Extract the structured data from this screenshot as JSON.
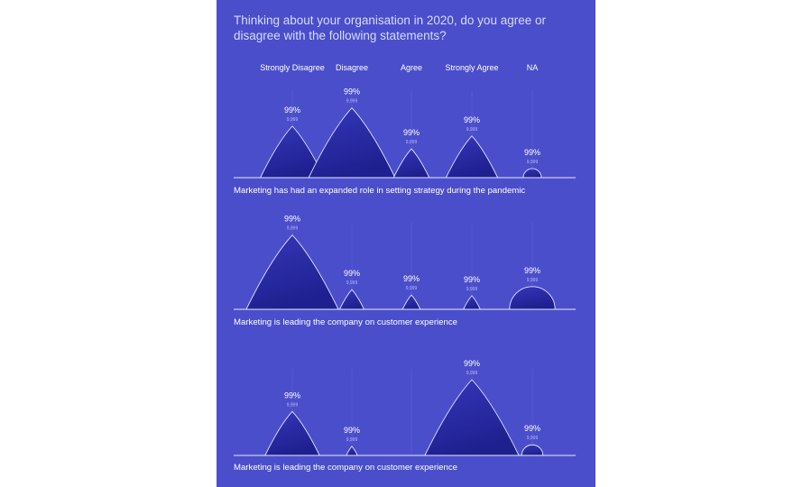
{
  "title": "Thinking about your organisation in 2020, do you agree or disagree with the following statements?",
  "chart_data": {
    "type": "area",
    "title": "Thinking about your organisation in 2020, do you agree or disagree with the following statements?",
    "categories": [
      "Strongly Disagree",
      "Disagree",
      "Agree",
      "Strongly Agree",
      "NA"
    ],
    "rows": [
      {
        "label": "Marketing has had an expanded role in setting strategy during the pandemic",
        "percent_labels": [
          "99%",
          "99%",
          "99%",
          "99%",
          "99%"
        ],
        "count_labels": [
          "9,999",
          "9,999",
          "9,999",
          "9,999",
          "9,999"
        ],
        "relative_values": [
          0.68,
          0.92,
          0.38,
          0.55,
          0.12
        ],
        "shapes": [
          "peak",
          "peak",
          "peak",
          "peak",
          "dome"
        ]
      },
      {
        "label": "Marketing is leading the company on customer experience",
        "percent_labels": [
          "99%",
          "99%",
          "99%",
          "99%",
          "99%"
        ],
        "count_labels": [
          "9,999",
          "9,999",
          "9,999",
          "9,999",
          "9,999"
        ],
        "relative_values": [
          0.98,
          0.26,
          0.19,
          0.18,
          0.3
        ],
        "shapes": [
          "peak",
          "peak",
          "peak",
          "peak",
          "dome"
        ]
      },
      {
        "label": "Marketing is leading the company on customer experience",
        "percent_labels": [
          "99%",
          "99%",
          null,
          "99%",
          "99%"
        ],
        "count_labels": [
          "9,999",
          "9,999",
          null,
          "9,999",
          "9,999"
        ],
        "relative_values": [
          0.58,
          0.12,
          0,
          1.0,
          0.14
        ],
        "shapes": [
          "peak",
          "peak",
          "none",
          "peak",
          "dome"
        ]
      }
    ]
  },
  "colors": {
    "background": "#4b4ecb",
    "shape_top": "#3234b5",
    "shape_bottom": "#1f2190",
    "outline": "#dfe2ff",
    "axis": "#e6e8ff"
  }
}
